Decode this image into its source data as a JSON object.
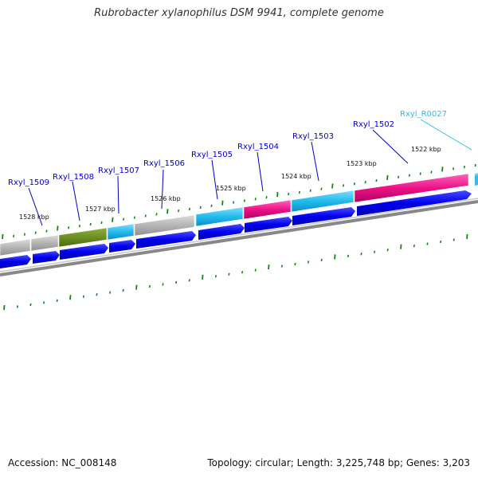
{
  "title": "Rubrobacter xylanophilus DSM 9941, complete genome",
  "accession_label": "Accession: NC_008148",
  "summary_label": "Topology: circular; Length: 3,225,748 bp; Genes: 3,203",
  "kbp_ticks": [
    "1528 kbp",
    "1527 kbp",
    "1526 kbp",
    "1525 kbp",
    "1524 kbp",
    "1523 kbp",
    "1522 kbp"
  ],
  "genes": [
    {
      "name": "Rxyl_1509",
      "color": "#0000cc"
    },
    {
      "name": "Rxyl_1508",
      "color": "#0000cc"
    },
    {
      "name": "Rxyl_1507",
      "color": "#0000cc"
    },
    {
      "name": "Rxyl_1506",
      "color": "#0000cc"
    },
    {
      "name": "Rxyl_1505",
      "color": "#0000cc"
    },
    {
      "name": "Rxyl_1504",
      "color": "#0000cc"
    },
    {
      "name": "Rxyl_1503",
      "color": "#0000cc"
    },
    {
      "name": "Rxyl_1502",
      "color": "#0000cc"
    },
    {
      "name": "Rxyl_R0027",
      "color": "#33bbee"
    }
  ],
  "colors": {
    "cds_arrow": "#0000ee",
    "rna_arrow": "#33bbee",
    "cog_gray": "#b4b4b4",
    "cog_olive": "#6b8e23",
    "cog_cyan": "#22bbee",
    "cog_magenta": "#ee1188",
    "backbone": "#888888",
    "tick": "#118811"
  }
}
